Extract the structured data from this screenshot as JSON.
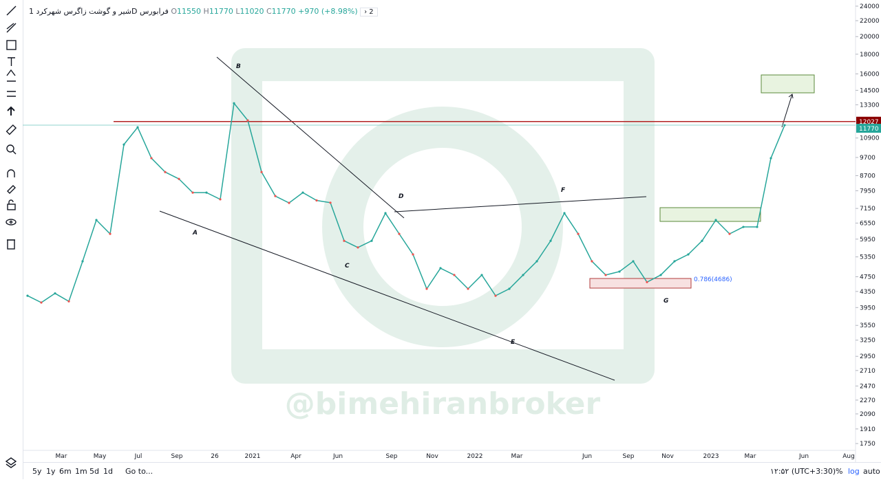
{
  "header": {
    "symbol": "شیر و گوشت زاگرس شهرکرد",
    "interval": "1D",
    "exchange": "فرابورس",
    "o_label": "O",
    "open": "11550",
    "h_label": "H",
    "high": "11770",
    "l_label": "L",
    "low": "11020",
    "c_label": "C",
    "close": "11770",
    "change": "+970 (+8.98%)",
    "indicators": "2"
  },
  "chart_data": {
    "type": "line",
    "log_scale": true,
    "color": "#26a69a",
    "values": [
      4240,
      4070,
      4300,
      4100,
      5210,
      6670,
      6140,
      10480,
      11620,
      9660,
      8890,
      8530,
      7860,
      7860,
      7550,
      13420,
      12110,
      8890,
      7700,
      7390,
      7860,
      7500,
      7400,
      5890,
      5660,
      5890,
      6950,
      6140,
      5430,
      4420,
      5000,
      4800,
      4420,
      4800,
      4240,
      4420,
      4800,
      5210,
      5890,
      6950,
      6140,
      5210,
      4800,
      4900,
      5210,
      4600,
      4800,
      5210,
      5430,
      5890,
      6670,
      6140,
      6400,
      6400,
      9660,
      11770
    ],
    "ylim": [
      1680,
      24900
    ],
    "yticks": [
      1750,
      1910,
      2090,
      2270,
      2470,
      2710,
      2950,
      3250,
      3550,
      3950,
      4350,
      4750,
      5350,
      5950,
      6550,
      7150,
      7950,
      8700,
      9700,
      10900,
      13300,
      14500,
      16000,
      18000,
      20000,
      22000,
      24000
    ],
    "x_axis_labels": [
      "Mar",
      "May",
      "Jul",
      "Sep",
      "26",
      "2021",
      "Apr",
      "Jun",
      "Sep",
      "Nov",
      "2022",
      "Mar",
      "Jun",
      "Sep",
      "Nov",
      "2023",
      "Mar",
      "Jun",
      "Aug"
    ],
    "resistance": 12027,
    "last_price": 11770,
    "wave_labels": [
      "A",
      "B",
      "C",
      "D",
      "E",
      "F",
      "G"
    ],
    "fib_label": "0.786(4686)",
    "watermark": "@bimehiranbroker"
  },
  "footer": {
    "ranges": [
      "5y",
      "1y",
      "6m",
      "1m",
      "5d",
      "1d"
    ],
    "goto": "Go to...",
    "clock": "۱۲:۵۲ (UTC+3:30)",
    "percent": "%",
    "log": "log",
    "auto": "auto"
  }
}
